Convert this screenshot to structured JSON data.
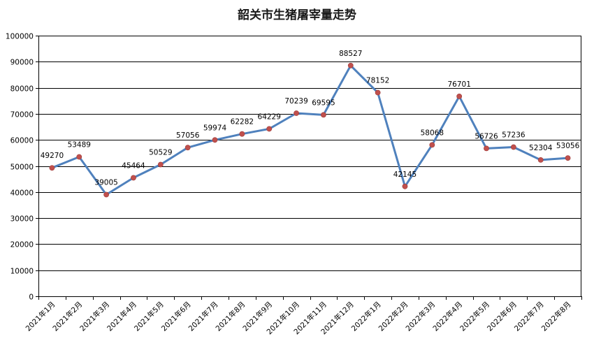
{
  "chart_data": {
    "type": "line",
    "title": "韶关市生猪屠宰量走势",
    "xlabel": "",
    "ylabel": "",
    "ylim": [
      0,
      100000
    ],
    "yticks": [
      0,
      10000,
      20000,
      30000,
      40000,
      50000,
      60000,
      70000,
      80000,
      90000,
      100000
    ],
    "grid": true,
    "legend": "none",
    "categories": [
      "2021年1月",
      "2021年2月",
      "2021年3月",
      "2021年4月",
      "2021年5月",
      "2021年6月",
      "2021年7月",
      "2021年8月",
      "2021年9月",
      "2021年10月",
      "2021年11月",
      "2021年12月",
      "2022年1月",
      "2022年2月",
      "2022年3月",
      "2022年4月",
      "2022年5月",
      "2022年6月",
      "2022年7月",
      "2022年8月"
    ],
    "series": [
      {
        "values": [
          49270,
          53489,
          39005,
          45464,
          50529,
          57056,
          59974,
          62282,
          64229,
          70239,
          69595,
          88527,
          78152,
          42145,
          58068,
          76701,
          56726,
          57236,
          52304,
          53056
        ],
        "line_color": "#4f81bd",
        "marker_color": "#c0504d"
      }
    ]
  }
}
